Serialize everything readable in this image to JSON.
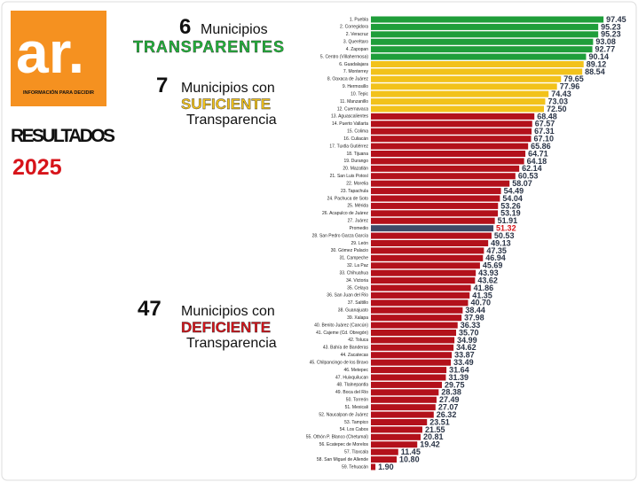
{
  "header": {
    "logo": "ar.",
    "tagline": "INFORMACIÓN PARA DECIDIR",
    "title": "RESULTADOS",
    "year": "2025"
  },
  "groups": [
    {
      "count": "6",
      "line1": "Municipios",
      "level": "TRANSPARENTES",
      "color": "#22b23a"
    },
    {
      "count": "7",
      "line1": "Municipios con",
      "level": "SUFICIENTE",
      "line2": "Transparencia",
      "color": "#f2c21b"
    },
    {
      "count": "47",
      "line1": "Municipios con",
      "level": "DEFICIENTE",
      "line2": "Transparencia",
      "color": "#d7141a"
    }
  ],
  "chart_data": {
    "type": "hbar",
    "categories": [
      "1. Puebla",
      "2. Corregidora",
      "2. Veracruz",
      "3. Querétaro",
      "4. Zapopan",
      "5. Centro (Villahermosa)",
      "6. Guadalajara",
      "7. Monterrey",
      "8. Oaxaca de Juárez",
      "9. Hermosillo",
      "10. Tepic",
      "11. Manzanillo",
      "12. Cuernavaca",
      "13. Aguascalientes",
      "14. Puerto Vallarta",
      "15. Colima",
      "16. Culiacán",
      "17. Tuxtla Gutiérrez",
      "18. Tijuana",
      "19. Durango",
      "20. Mazatlán",
      "21. San Luis Potosí",
      "22. Morelia",
      "23. Tapachula",
      "24. Pachuca de Soto",
      "25. Mérida",
      "26. Acapulco de Juárez",
      "27. Juárez",
      "Promedio",
      "28. San Pedro Garza García",
      "29. León",
      "30. Gómez Palacio",
      "31. Campeche",
      "32. La Paz",
      "33. Chihuahua",
      "34. Victoria",
      "35. Celaya",
      "36. San Juan del Río",
      "37. Saltillo",
      "38. Guanajuato",
      "39. Xalapa",
      "40. Benito Juárez (Cancún)",
      "41. Cajeme (Cd. Obregón)",
      "42. Toluca",
      "43. Bahía de Banderas",
      "44. Zacatecas",
      "45. Chilpancingo de los Bravo",
      "46. Metepec",
      "47. Huixquilucan",
      "48. Tlalnepantla",
      "49. Boca del Río",
      "50. Torreón",
      "51. Mexicali",
      "52. Naucalpan de Juárez",
      "53. Tampico",
      "54. Los Cabos",
      "55. Othón P. Blanco (Chetumal)",
      "56. Ecatepec de Morelos",
      "57. Tlaxcala",
      "58. San Miguel de Allende",
      "59. Tehuacán"
    ],
    "values": [
      97.45,
      95.23,
      95.23,
      93.08,
      92.77,
      90.14,
      89.12,
      88.54,
      79.65,
      77.96,
      74.43,
      73.03,
      72.5,
      68.48,
      67.57,
      67.31,
      67.1,
      65.86,
      64.71,
      64.18,
      62.14,
      60.53,
      58.07,
      54.49,
      54.04,
      53.26,
      53.19,
      51.91,
      51.32,
      50.53,
      49.13,
      47.35,
      46.94,
      45.69,
      43.93,
      43.62,
      41.86,
      41.35,
      40.7,
      38.44,
      37.98,
      36.33,
      35.7,
      34.99,
      34.62,
      33.87,
      33.49,
      31.64,
      31.39,
      29.75,
      28.38,
      27.49,
      27.07,
      26.32,
      23.51,
      21.55,
      20.81,
      19.42,
      11.45,
      10.8,
      1.9
    ],
    "value_labels": [
      "97.45",
      "95.23",
      "95.23",
      "93.08",
      "92.77",
      "90.14",
      "89.12",
      "88.54",
      "79.65",
      "77.96",
      "74.43",
      "73.03",
      "72.50",
      "68.48",
      "67.57",
      "67.31",
      "67.10",
      "65.86",
      "64.71",
      "64.18",
      "62.14",
      "60.53",
      "58.07",
      "54.49",
      "54.04",
      "53.26",
      "53.19",
      "51.91",
      "51.32",
      "50.53",
      "49.13",
      "47.35",
      "46.94",
      "45.69",
      "43.93",
      "43.62",
      "41.86",
      "41.35",
      "40.70",
      "38.44",
      "37.98",
      "36.33",
      "35.70",
      "34.99",
      "34.62",
      "33.87",
      "33.49",
      "31.64",
      "31.39",
      "29.75",
      "28.38",
      "27.49",
      "27.07",
      "26.32",
      "23.51",
      "21.55",
      "20.81",
      "19.42",
      "11.45",
      "10.80",
      "1.90"
    ],
    "colors": [
      "#1f9e3a",
      "#1f9e3a",
      "#1f9e3a",
      "#1f9e3a",
      "#1f9e3a",
      "#1f9e3a",
      "#f2c21b",
      "#f2c21b",
      "#f2c21b",
      "#f2c21b",
      "#f2c21b",
      "#f2c21b",
      "#f2c21b",
      "#b3111b",
      "#b3111b",
      "#b3111b",
      "#b3111b",
      "#b3111b",
      "#b3111b",
      "#b3111b",
      "#b3111b",
      "#b3111b",
      "#b3111b",
      "#b3111b",
      "#b3111b",
      "#b3111b",
      "#b3111b",
      "#b3111b",
      "#3e4a68",
      "#b3111b",
      "#b3111b",
      "#b3111b",
      "#b3111b",
      "#b3111b",
      "#b3111b",
      "#b3111b",
      "#b3111b",
      "#b3111b",
      "#b3111b",
      "#b3111b",
      "#b3111b",
      "#b3111b",
      "#b3111b",
      "#b3111b",
      "#b3111b",
      "#b3111b",
      "#b3111b",
      "#b3111b",
      "#b3111b",
      "#b3111b",
      "#b3111b",
      "#b3111b",
      "#b3111b",
      "#b3111b",
      "#b3111b",
      "#b3111b",
      "#b3111b",
      "#b3111b",
      "#b3111b",
      "#b3111b",
      "#b3111b"
    ],
    "value_label_colors": [
      "#2b3547",
      "#2b3547",
      "#2b3547",
      "#2b3547",
      "#2b3547",
      "#2b3547",
      "#2b3547",
      "#2b3547",
      "#2b3547",
      "#2b3547",
      "#2b3547",
      "#2b3547",
      "#2b3547",
      "#2b3547",
      "#2b3547",
      "#2b3547",
      "#2b3547",
      "#2b3547",
      "#2b3547",
      "#2b3547",
      "#2b3547",
      "#2b3547",
      "#2b3547",
      "#2b3547",
      "#2b3547",
      "#2b3547",
      "#2b3547",
      "#2b3547",
      "#d7141a",
      "#2b3547",
      "#2b3547",
      "#2b3547",
      "#2b3547",
      "#2b3547",
      "#2b3547",
      "#2b3547",
      "#2b3547",
      "#2b3547",
      "#2b3547",
      "#2b3547",
      "#2b3547",
      "#2b3547",
      "#2b3547",
      "#2b3547",
      "#2b3547",
      "#2b3547",
      "#2b3547",
      "#2b3547",
      "#2b3547",
      "#2b3547",
      "#2b3547",
      "#2b3547",
      "#2b3547",
      "#2b3547",
      "#2b3547",
      "#2b3547",
      "#2b3547",
      "#2b3547",
      "#2b3547",
      "#2b3547",
      "#2b3547"
    ]
  }
}
